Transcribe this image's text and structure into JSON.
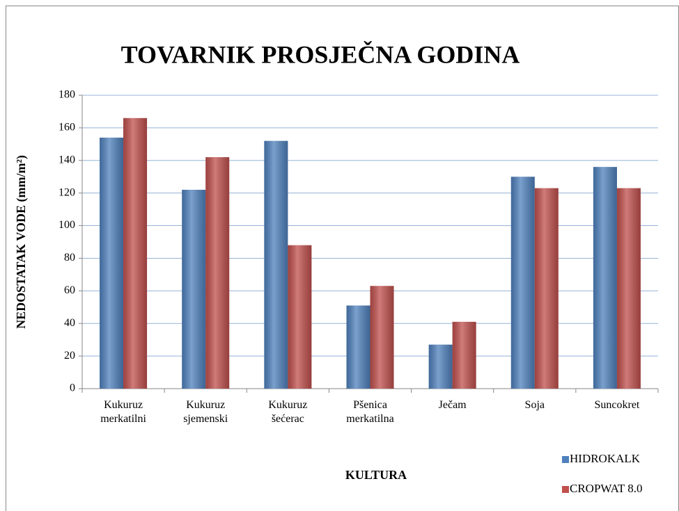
{
  "chart_data": {
    "type": "bar",
    "title": "TOVARNIK PROSJEČNA GODINA",
    "x_label": "KULTURA",
    "y_label": "NEDOSTATAK VODE (mm/m²)",
    "categories": [
      "Kukuruz merkatilni",
      "Kukuruz sjemenski",
      "Kukuruz šećerac",
      "Pšenica merkatilna",
      "Ječam",
      "Soja",
      "Suncokret"
    ],
    "series": [
      {
        "name": "HIDROKALK",
        "color": "#4f81bd",
        "values": [
          154,
          122,
          152,
          51,
          27,
          130,
          136
        ]
      },
      {
        "name": "CROPWAT 8.0",
        "color": "#c0504d",
        "values": [
          166,
          142,
          88,
          63,
          41,
          123,
          123
        ]
      }
    ],
    "ylim": [
      0,
      180
    ],
    "yticks": [
      0,
      20,
      40,
      60,
      80,
      100,
      120,
      140,
      160,
      180
    ],
    "grid": true,
    "legend": "bottom-right"
  }
}
